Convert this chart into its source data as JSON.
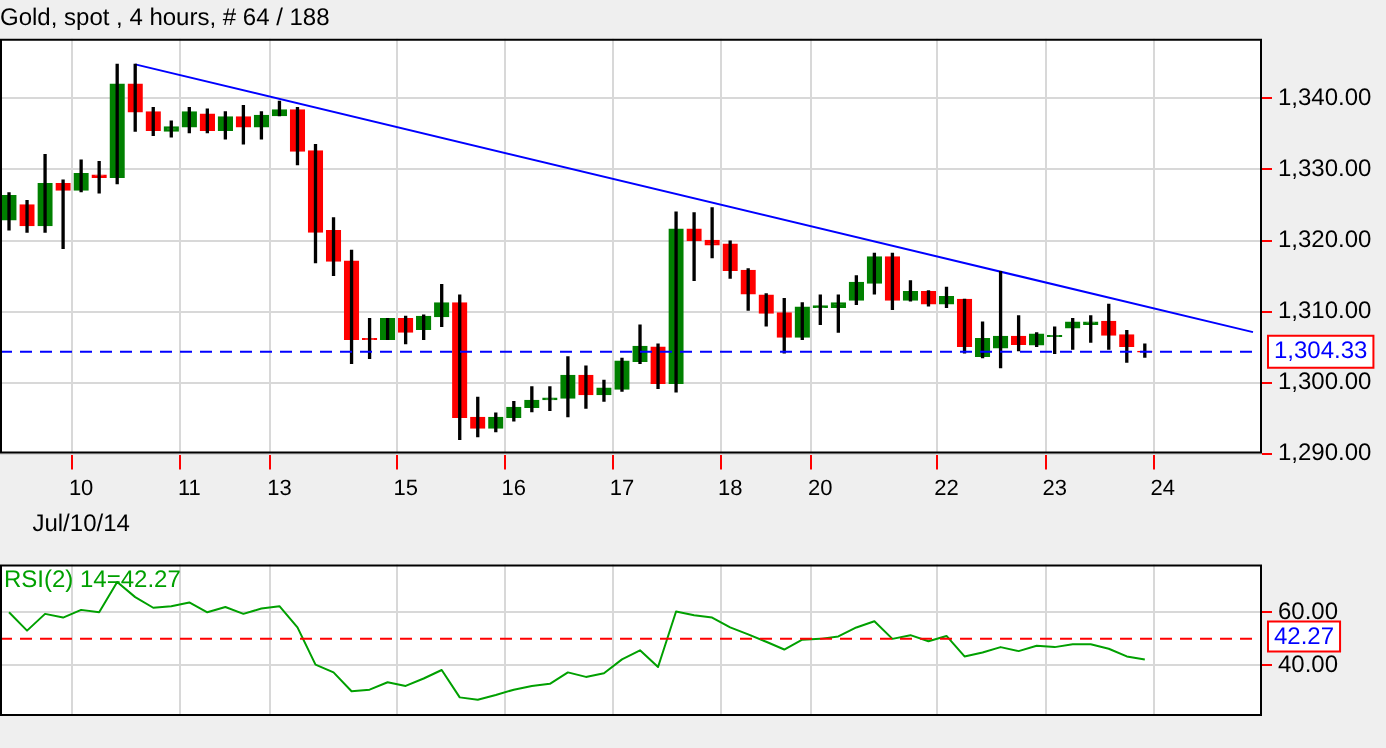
{
  "chart_data": [
    {
      "type": "candlestick",
      "title": "Gold, spot , 4 hours, # 64 / 188",
      "categories": [
        null,
        null,
        null,
        null,
        "10",
        null,
        null,
        null,
        null,
        null,
        "11",
        null,
        null,
        null,
        null,
        "13",
        null,
        null,
        null,
        null,
        null,
        null,
        "15",
        null,
        null,
        null,
        null,
        null,
        "16",
        null,
        null,
        null,
        null,
        null,
        "17",
        null,
        null,
        null,
        null,
        null,
        "18",
        null,
        null,
        null,
        null,
        "20",
        null,
        null,
        null,
        null,
        null,
        null,
        "22",
        null,
        null,
        null,
        null,
        null,
        "23",
        null,
        null,
        null,
        null,
        null,
        "24",
        null,
        null,
        null,
        null,
        null
      ],
      "ohlc": [
        [
          1322.9,
          1326.7,
          1321.5,
          1326.3
        ],
        [
          1325.0,
          1325.6,
          1321.2,
          1322.1
        ],
        [
          1322.1,
          1332.1,
          1321.2,
          1328.0
        ],
        [
          1328.0,
          1328.5,
          1318.9,
          1327.1
        ],
        [
          1327.1,
          1331.3,
          1326.9,
          1329.4
        ],
        [
          1329.2,
          1331.1,
          1326.7,
          1328.9
        ],
        [
          1328.9,
          1344.8,
          1328.0,
          1342.0
        ],
        [
          1342.0,
          1344.8,
          1335.4,
          1338.1
        ],
        [
          1338.1,
          1338.7,
          1334.8,
          1335.5
        ],
        [
          1335.4,
          1336.8,
          1334.6,
          1336.0
        ],
        [
          1336.0,
          1338.7,
          1335.2,
          1338.1
        ],
        [
          1337.8,
          1338.5,
          1335.2,
          1335.5
        ],
        [
          1335.5,
          1338.1,
          1334.3,
          1337.4
        ],
        [
          1337.4,
          1339.0,
          1333.6,
          1336.0
        ],
        [
          1336.0,
          1338.1,
          1334.3,
          1337.6
        ],
        [
          1337.6,
          1339.6,
          1337.6,
          1338.4
        ],
        [
          1338.4,
          1338.7,
          1330.7,
          1332.6
        ],
        [
          1332.6,
          1333.5,
          1316.9,
          1321.2
        ],
        [
          1321.4,
          1323.2,
          1315.1,
          1317.1
        ],
        [
          1317.1,
          1318.6,
          1302.7,
          1306.1
        ],
        [
          1306.2,
          1309.0,
          1303.4,
          1306.1
        ],
        [
          1306.1,
          1309.0,
          1306.1,
          1309.0
        ],
        [
          1309.0,
          1309.3,
          1305.5,
          1307.1
        ],
        [
          1307.5,
          1309.5,
          1306.1,
          1309.3
        ],
        [
          1309.3,
          1313.8,
          1307.9,
          1311.2
        ],
        [
          1311.2,
          1312.3,
          1292.0,
          1295.1
        ],
        [
          1295.1,
          1297.9,
          1292.4,
          1293.6
        ],
        [
          1293.6,
          1295.7,
          1293.1,
          1295.1
        ],
        [
          1295.1,
          1297.3,
          1294.6,
          1296.5
        ],
        [
          1296.5,
          1299.4,
          1295.9,
          1297.5
        ],
        [
          1297.6,
          1299.4,
          1296.1,
          1297.8
        ],
        [
          1297.8,
          1303.6,
          1295.2,
          1301.0
        ],
        [
          1301.0,
          1302.3,
          1296.4,
          1298.3
        ],
        [
          1298.3,
          1300.3,
          1297.4,
          1299.2
        ],
        [
          1299.1,
          1303.4,
          1298.8,
          1303.0
        ],
        [
          1303.0,
          1308.1,
          1302.7,
          1305.1
        ],
        [
          1305.0,
          1305.4,
          1299.2,
          1299.9
        ],
        [
          1299.9,
          1324.0,
          1298.7,
          1321.6
        ],
        [
          1321.6,
          1323.9,
          1314.4,
          1320.0
        ],
        [
          1320.0,
          1324.6,
          1317.6,
          1319.4
        ],
        [
          1319.5,
          1319.9,
          1314.7,
          1315.8
        ],
        [
          1315.8,
          1316.0,
          1310.2,
          1312.5
        ],
        [
          1312.3,
          1312.5,
          1308.0,
          1309.8
        ],
        [
          1309.8,
          1311.8,
          1304.2,
          1306.4
        ],
        [
          1306.4,
          1311.2,
          1306.1,
          1310.6
        ],
        [
          1310.6,
          1312.3,
          1308.2,
          1310.8
        ],
        [
          1310.6,
          1312.3,
          1307.1,
          1311.2
        ],
        [
          1311.6,
          1315.0,
          1311.0,
          1314.1
        ],
        [
          1314.0,
          1318.2,
          1312.5,
          1317.7
        ],
        [
          1317.7,
          1318.2,
          1310.3,
          1311.6
        ],
        [
          1311.6,
          1314.3,
          1311.5,
          1312.8
        ],
        [
          1312.8,
          1312.9,
          1310.8,
          1311.1
        ],
        [
          1311.1,
          1313.4,
          1310.6,
          1312.1
        ],
        [
          1311.7,
          1311.7,
          1304.2,
          1305.1
        ],
        [
          1303.7,
          1308.5,
          1303.5,
          1306.2
        ],
        [
          1304.9,
          1315.6,
          1302.1,
          1306.5
        ],
        [
          1306.5,
          1309.4,
          1304.5,
          1305.4
        ],
        [
          1305.3,
          1307.0,
          1305.1,
          1306.8
        ],
        [
          1306.5,
          1307.8,
          1304.1,
          1306.6
        ],
        [
          1307.7,
          1309.0,
          1304.7,
          1308.5
        ],
        [
          1308.2,
          1309.4,
          1305.7,
          1308.5
        ],
        [
          1308.6,
          1311.0,
          1304.7,
          1306.7
        ],
        [
          1306.7,
          1307.3,
          1302.9,
          1305.1
        ],
        [
          1304.4,
          1305.4,
          1303.6,
          1304.33
        ],
        null,
        null,
        null,
        null,
        null,
        null
      ],
      "colors": [
        "#008000",
        "#ff0000",
        "#008000",
        "#ff0000",
        "#008000",
        "#ff0000",
        "#008000",
        "#ff0000",
        "#ff0000",
        "#008000",
        "#008000",
        "#ff0000",
        "#008000",
        "#ff0000",
        "#008000",
        "#008000",
        "#ff0000",
        "#ff0000",
        "#ff0000",
        "#ff0000",
        "#ff0000",
        "#008000",
        "#ff0000",
        "#008000",
        "#008000",
        "#ff0000",
        "#ff0000",
        "#008000",
        "#008000",
        "#008000",
        "#008000",
        "#008000",
        "#ff0000",
        "#008000",
        "#008000",
        "#008000",
        "#ff0000",
        "#008000",
        "#ff0000",
        "#ff0000",
        "#ff0000",
        "#ff0000",
        "#ff0000",
        "#ff0000",
        "#008000",
        "#008000",
        "#008000",
        "#008000",
        "#008000",
        "#ff0000",
        "#008000",
        "#ff0000",
        "#008000",
        "#ff0000",
        "#008000",
        "#008000",
        "#ff0000",
        "#008000",
        "#008000",
        "#008000",
        "#008000",
        "#ff0000",
        "#ff0000",
        "#ff0000",
        null,
        null,
        null,
        null,
        null,
        null
      ],
      "series": [
        {
          "type": "line",
          "color": "#0000ff",
          "values": [
            null,
            null,
            null,
            null,
            null,
            null,
            null,
            1344.8,
            null,
            null,
            null,
            null,
            null,
            null,
            null,
            null,
            null,
            null,
            null,
            null,
            null,
            null,
            null,
            null,
            null,
            null,
            null,
            null,
            null,
            null,
            null,
            null,
            null,
            null,
            null,
            null,
            null,
            null,
            null,
            null,
            null,
            null,
            null,
            null,
            null,
            null,
            null,
            null,
            null,
            null,
            null,
            null,
            null,
            null,
            null,
            null,
            null,
            null,
            null,
            null,
            null,
            null,
            null,
            null,
            null,
            null,
            null,
            null,
            null,
            1307.1
          ]
        }
      ],
      "ylim": [
        1290,
        1348.4
      ],
      "yticks": [
        {
          "value": 1290,
          "label": "1,290.00"
        },
        {
          "value": 1300,
          "label": "1,300.00"
        },
        {
          "value": 1310,
          "label": "1,310.00"
        },
        {
          "value": 1320,
          "label": "1,320.00"
        },
        {
          "value": 1330,
          "label": "1,330.00"
        },
        {
          "value": 1340,
          "label": "1,340.00"
        }
      ],
      "ref_lines": [
        {
          "axis": "y",
          "value": 1304.33,
          "label": "1,304.33",
          "color": "#0000ff",
          "line_style": "dashed"
        }
      ],
      "annotations": [
        "Jul/10/14"
      ],
      "grid": true,
      "legend": false,
      "marker": "none"
    },
    {
      "type": "line",
      "title": "RSI(2) 14=42.27",
      "color": "#00a000",
      "categories": [
        null,
        null,
        null,
        null,
        "10",
        null,
        null,
        null,
        null,
        null,
        "11",
        null,
        null,
        null,
        null,
        "13",
        null,
        null,
        null,
        null,
        null,
        null,
        "15",
        null,
        null,
        null,
        null,
        null,
        "16",
        null,
        null,
        null,
        null,
        null,
        "17",
        null,
        null,
        null,
        null,
        null,
        "18",
        null,
        null,
        null,
        null,
        "20",
        null,
        null,
        null,
        null,
        null,
        null,
        "22",
        null,
        null,
        null,
        null,
        null,
        "23",
        null,
        null,
        null,
        null,
        null,
        "24",
        null,
        null,
        null,
        null,
        null
      ],
      "values": [
        60,
        53.1,
        59.4,
        58,
        60.9,
        60,
        71.4,
        65.7,
        61.7,
        62.3,
        63.7,
        60,
        62,
        59.4,
        61.4,
        62.3,
        54.3,
        40.3,
        37.4,
        30.3,
        30.9,
        33.7,
        32.3,
        35.1,
        38.3,
        28,
        27.1,
        28.9,
        30.9,
        32.3,
        33.1,
        37.4,
        35.7,
        37.1,
        42.3,
        45.7,
        39.4,
        60.3,
        58.9,
        58,
        54.3,
        51.7,
        48.9,
        46,
        49.7,
        50,
        50.9,
        54.3,
        56.6,
        50,
        51.4,
        49.1,
        51.1,
        43.4,
        44.9,
        46.9,
        45.4,
        47.4,
        46.9,
        48,
        48,
        46.3,
        43.4,
        42.27,
        null,
        null,
        null,
        null,
        null,
        null
      ],
      "ylim": [
        21,
        78
      ],
      "yticks": [
        {
          "value": 40,
          "label": "40.00"
        },
        {
          "value": 60,
          "label": "60.00"
        }
      ],
      "ref_lines": [
        {
          "axis": "y",
          "value": 50,
          "color": "#ff0000",
          "line_style": "dashed"
        }
      ],
      "annotations": [
        "42.27"
      ],
      "tick_labels": "y",
      "grid": true,
      "legend": false,
      "marker": "none"
    }
  ]
}
